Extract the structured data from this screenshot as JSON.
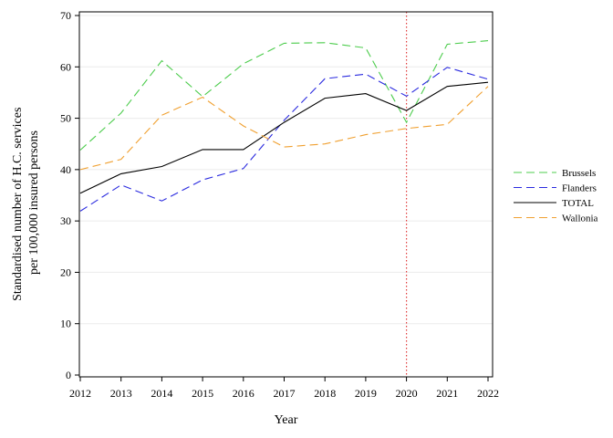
{
  "chart_data": {
    "type": "line",
    "title": "",
    "xlabel": "Year",
    "ylabel_lines": [
      "Standardised number of H.C. services",
      "per 100,000 insured persons"
    ],
    "x": [
      2012,
      2013,
      2014,
      2015,
      2016,
      2017,
      2018,
      2019,
      2020,
      2021,
      2022
    ],
    "xlim": [
      2012,
      2022
    ],
    "ylim": [
      0,
      70
    ],
    "yticks": [
      0,
      10,
      20,
      30,
      40,
      50,
      60,
      70
    ],
    "grid": "horizontal",
    "legend": "right",
    "reference_line": {
      "x": 2020,
      "color": "#e03c3c",
      "style": "dotted"
    },
    "series": [
      {
        "name": "Brussels",
        "color": "#4ccc4c",
        "style": "dashed",
        "values": [
          43.8,
          51.0,
          61.2,
          54.2,
          60.6,
          64.6,
          64.7,
          63.7,
          49.2,
          64.4,
          65.1
        ]
      },
      {
        "name": "Flanders",
        "color": "#2a2adf",
        "style": "dashed",
        "values": [
          31.9,
          37.0,
          33.9,
          38.0,
          40.2,
          49.6,
          57.7,
          58.6,
          54.3,
          59.9,
          57.6
        ]
      },
      {
        "name": "TOTAL",
        "color": "#000000",
        "style": "solid",
        "values": [
          35.4,
          39.2,
          40.6,
          43.9,
          43.9,
          49.2,
          53.9,
          54.8,
          51.5,
          56.2,
          57.0
        ]
      },
      {
        "name": "Wallonia",
        "color": "#f0a030",
        "style": "dashed",
        "values": [
          40.0,
          42.0,
          50.6,
          54.1,
          48.5,
          44.4,
          45.0,
          46.8,
          48.0,
          48.8,
          56.2
        ]
      }
    ]
  }
}
